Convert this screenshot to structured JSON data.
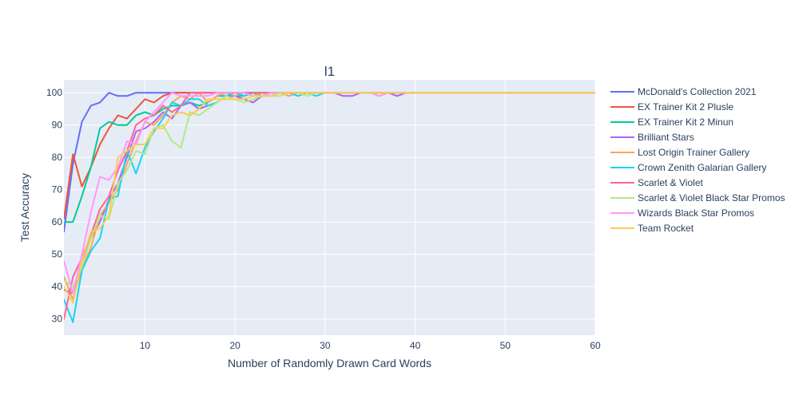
{
  "chart_data": {
    "type": "line",
    "title": "l1",
    "xlabel": "Number of Randomly Drawn Card Words",
    "ylabel": "Test Accuracy",
    "xlim": [
      1,
      60
    ],
    "ylim": [
      25,
      104
    ],
    "xticks": [
      10,
      20,
      30,
      40,
      50,
      60
    ],
    "yticks": [
      30,
      40,
      50,
      60,
      70,
      80,
      90,
      100
    ],
    "grid": true,
    "legend_position": "right",
    "background_color": "#e5ecf6",
    "series": [
      {
        "name": "McDonald's Collection 2021",
        "color": "#636efa",
        "x": [
          1,
          2,
          3,
          4,
          5,
          6,
          7,
          8,
          9,
          10,
          11,
          12,
          13,
          14,
          15,
          20,
          30,
          40,
          50,
          60
        ],
        "y": [
          57,
          78,
          91,
          96,
          97,
          100,
          99,
          99,
          100,
          100,
          100,
          100,
          100,
          100,
          100,
          100,
          100,
          100,
          100,
          100
        ]
      },
      {
        "name": "EX Trainer Kit 2 Plusle",
        "color": "#EF553B",
        "x": [
          1,
          2,
          3,
          4,
          5,
          6,
          7,
          8,
          9,
          10,
          11,
          12,
          13,
          14,
          15,
          16,
          17,
          18,
          20,
          30,
          40,
          50,
          60
        ],
        "y": [
          61,
          81,
          71,
          77,
          84,
          89,
          93,
          92,
          95,
          98,
          97,
          99,
          100,
          100,
          100,
          100,
          100,
          100,
          100,
          100,
          100,
          100,
          100
        ]
      },
      {
        "name": "EX Trainer Kit 2 Minun",
        "color": "#00cc96",
        "x": [
          1,
          2,
          3,
          4,
          5,
          6,
          7,
          8,
          9,
          10,
          11,
          12,
          13,
          14,
          15,
          16,
          17,
          18,
          19,
          20,
          21,
          22,
          23,
          24,
          25,
          30,
          40,
          50,
          60
        ],
        "y": [
          60,
          60,
          68,
          77,
          89,
          91,
          90,
          90,
          93,
          94,
          93,
          95,
          96,
          96,
          97,
          96,
          97,
          99,
          99,
          99,
          99,
          100,
          99,
          99,
          100,
          100,
          100,
          100,
          100
        ]
      },
      {
        "name": "Brilliant Stars",
        "color": "#ab63fa",
        "x": [
          1,
          2,
          3,
          4,
          5,
          6,
          7,
          8,
          9,
          10,
          11,
          12,
          13,
          14,
          15,
          16,
          17,
          18,
          19,
          20,
          21,
          22,
          23,
          24,
          25,
          26,
          27,
          28,
          29,
          30,
          31,
          32,
          33,
          34,
          35,
          36,
          37,
          38,
          39,
          40,
          50,
          60
        ],
        "y": [
          39,
          38,
          48,
          55,
          60,
          67,
          72,
          80,
          88,
          89,
          91,
          94,
          92,
          96,
          97,
          95,
          96,
          97,
          99,
          99,
          98,
          97,
          99,
          100,
          100,
          100,
          100,
          100,
          100,
          100,
          100,
          99,
          99,
          100,
          100,
          100,
          100,
          99,
          100,
          100,
          100,
          100
        ]
      },
      {
        "name": "Lost Origin Trainer Gallery",
        "color": "#FFA15A",
        "x": [
          1,
          2,
          3,
          4,
          5,
          6,
          7,
          8,
          9,
          10,
          11,
          12,
          13,
          14,
          15,
          16,
          17,
          18,
          19,
          20,
          21,
          22,
          23,
          24,
          25,
          26,
          27,
          28,
          29,
          30,
          35,
          36,
          37,
          40,
          50,
          60
        ],
        "y": [
          43,
          36,
          46,
          52,
          62,
          66,
          70,
          78,
          85,
          91,
          90,
          93,
          97,
          99,
          98,
          100,
          97,
          99,
          100,
          99,
          100,
          99,
          100,
          100,
          100,
          99,
          100,
          100,
          100,
          100,
          100,
          99,
          100,
          100,
          100,
          100
        ]
      },
      {
        "name": "Crown Zenith Galarian Gallery",
        "color": "#19d3f3",
        "x": [
          1,
          2,
          3,
          4,
          5,
          6,
          7,
          8,
          9,
          10,
          11,
          12,
          13,
          14,
          15,
          16,
          17,
          18,
          19,
          20,
          21,
          22,
          23,
          24,
          25,
          26,
          27,
          28,
          29,
          30,
          31,
          40,
          50,
          60
        ],
        "y": [
          36,
          29,
          45,
          51,
          55,
          67,
          68,
          82,
          75,
          83,
          88,
          92,
          97,
          96,
          98,
          98,
          96,
          97,
          99,
          100,
          99,
          100,
          100,
          100,
          100,
          100,
          99,
          100,
          99,
          100,
          100,
          100,
          100,
          100
        ]
      },
      {
        "name": "Scarlet & Violet",
        "color": "#FF6692",
        "x": [
          1,
          2,
          3,
          4,
          5,
          6,
          7,
          8,
          9,
          10,
          11,
          12,
          13,
          14,
          15,
          16,
          17,
          18,
          19,
          20,
          25,
          30,
          40,
          50,
          60
        ],
        "y": [
          30,
          43,
          49,
          56,
          64,
          68,
          76,
          82,
          90,
          92,
          93,
          96,
          94,
          96,
          100,
          100,
          100,
          100,
          100,
          100,
          100,
          100,
          100,
          100,
          100
        ]
      },
      {
        "name": "Scarlet & Violet Black Star Promos",
        "color": "#B6E880",
        "x": [
          1,
          2,
          3,
          4,
          5,
          6,
          7,
          8,
          9,
          10,
          11,
          12,
          13,
          14,
          15,
          16,
          17,
          18,
          19,
          20,
          21,
          22,
          23,
          24,
          25,
          26,
          27,
          28,
          29,
          30,
          40,
          50,
          60
        ],
        "y": [
          42,
          40,
          46,
          55,
          62,
          61,
          72,
          76,
          82,
          81,
          89,
          90,
          85,
          83,
          94,
          93,
          95,
          97,
          99,
          98,
          97,
          98,
          99,
          99,
          99,
          100,
          100,
          99,
          100,
          100,
          100,
          100,
          100
        ]
      },
      {
        "name": "Wizards Black Star Promos",
        "color": "#FF97FF",
        "x": [
          1,
          2,
          3,
          4,
          5,
          6,
          7,
          8,
          9,
          10,
          11,
          12,
          13,
          14,
          15,
          16,
          17,
          18,
          19,
          20,
          21,
          22,
          23,
          24,
          25,
          26,
          27,
          28,
          29,
          30,
          35,
          36,
          37,
          40,
          50,
          60
        ],
        "y": [
          48,
          38,
          50,
          63,
          74,
          73,
          77,
          85,
          84,
          91,
          94,
          97,
          100,
          99,
          99,
          99,
          99,
          100,
          100,
          100,
          100,
          99,
          99,
          100,
          100,
          100,
          100,
          100,
          100,
          100,
          100,
          99,
          100,
          100,
          100,
          100
        ]
      },
      {
        "name": "Team Rocket",
        "color": "#FECB52",
        "x": [
          1,
          2,
          3,
          4,
          5,
          6,
          7,
          8,
          9,
          10,
          11,
          12,
          13,
          14,
          15,
          16,
          17,
          18,
          19,
          20,
          21,
          22,
          23,
          24,
          25,
          26,
          27,
          28,
          29,
          30,
          40,
          50,
          60
        ],
        "y": [
          40,
          35,
          48,
          57,
          58,
          62,
          80,
          82,
          84,
          84,
          89,
          89,
          93,
          94,
          93,
          95,
          98,
          98,
          98,
          98,
          98,
          99,
          99,
          99,
          100,
          100,
          100,
          100,
          100,
          100,
          100,
          100,
          100
        ]
      }
    ]
  }
}
